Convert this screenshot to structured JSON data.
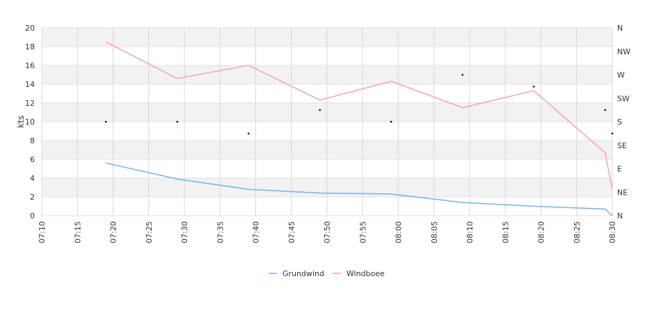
{
  "chart_data": {
    "type": "line",
    "ylabel": "kts",
    "ylim": [
      0,
      20
    ],
    "yticks": [
      "0",
      "2",
      "4",
      "6",
      "8",
      "10",
      "12",
      "14",
      "16",
      "18",
      "20"
    ],
    "xticks": [
      "07:10",
      "07:15",
      "07:20",
      "07:25",
      "07:30",
      "07:35",
      "07:40",
      "07:45",
      "07:50",
      "07:55",
      "08:00",
      "08:05",
      "08:10",
      "08:15",
      "08:20",
      "08:25",
      "08:30"
    ],
    "xlim": [
      "07:10",
      "08:30"
    ],
    "right_axis_labels": [
      "N",
      "NE",
      "E",
      "SE",
      "S",
      "SW",
      "W",
      "NW",
      "N"
    ],
    "grid": true,
    "legend_position": "bottom",
    "series": [
      {
        "name": "Grundwind",
        "color": "#7cb5ec",
        "x": [
          "07:19",
          "07:29",
          "07:39",
          "07:49",
          "07:59",
          "08:09",
          "08:19",
          "08:29",
          "08:30"
        ],
        "values": [
          5.6,
          3.9,
          2.8,
          2.4,
          2.3,
          1.4,
          1.0,
          0.7,
          0.0
        ]
      },
      {
        "name": "Windboee",
        "color": "#f7a1c4",
        "x": [
          "07:19",
          "07:29",
          "07:39",
          "07:49",
          "07:59",
          "08:09",
          "08:19",
          "08:29",
          "08:30"
        ],
        "values": [
          18.5,
          14.6,
          16.0,
          12.3,
          14.3,
          11.5,
          13.3,
          6.7,
          2.8
        ]
      }
    ],
    "direction_points": {
      "x": [
        "07:19",
        "07:29",
        "07:39",
        "07:49",
        "07:59",
        "08:09",
        "08:19",
        "08:29",
        "08:30"
      ],
      "values": [
        180,
        180,
        157.5,
        202.5,
        180,
        270,
        247.5,
        202.5,
        157.5
      ]
    }
  }
}
